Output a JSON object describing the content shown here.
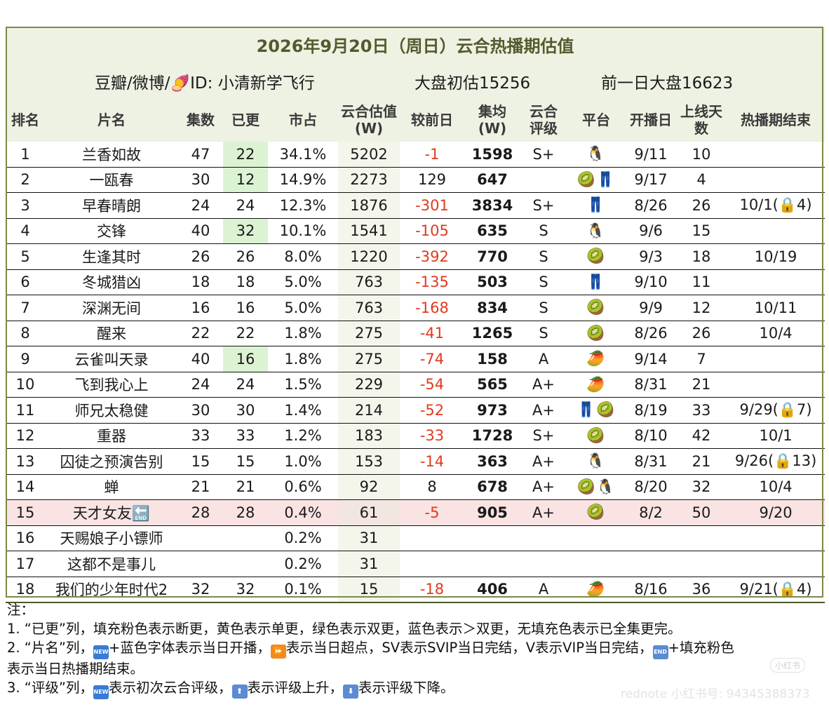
{
  "header": {
    "title": "2026年9月20日（周日）云合热播期估值",
    "author": "豆瓣/微博/🍠ID: 小清新学飞行",
    "initial_estimate": "大盘初估15256",
    "prev_day": "前一日大盘16623"
  },
  "columns": [
    "排名",
    "片名",
    "集数",
    "已更",
    "市占",
    "云合估值\n(W)",
    "较前日",
    "集均\n(W)",
    "云合\n评级",
    "平台",
    "开播日",
    "上线天\n数",
    "热播期结束"
  ],
  "rows": [
    {
      "rank": "1",
      "name": "兰香如故",
      "eps": "47",
      "updated": "22",
      "share": "34.1%",
      "est": "5202",
      "diff": "-1",
      "avg": "1598",
      "grade": "S+",
      "platform": "🐧",
      "start": "9/11",
      "days": "10",
      "end": ""
    },
    {
      "rank": "2",
      "name": "一瓯春",
      "eps": "30",
      "updated": "12",
      "share": "14.9%",
      "est": "2273",
      "diff": "129",
      "avg": "647",
      "grade": "",
      "platform": "🥝👖",
      "start": "9/17",
      "days": "4",
      "end": ""
    },
    {
      "rank": "3",
      "name": "早春晴朗",
      "eps": "24",
      "updated": "24",
      "share": "12.3%",
      "est": "1876",
      "diff": "-301",
      "avg": "3834",
      "grade": "S+",
      "platform": "👖",
      "start": "8/26",
      "days": "26",
      "end": "10/1(🔒4)"
    },
    {
      "rank": "4",
      "name": "交锋",
      "eps": "40",
      "updated": "32",
      "share": "10.1%",
      "est": "1541",
      "diff": "-105",
      "avg": "635",
      "grade": "S",
      "platform": "🐧",
      "start": "9/6",
      "days": "15",
      "end": ""
    },
    {
      "rank": "5",
      "name": "生逢其时",
      "eps": "26",
      "updated": "26",
      "share": "8.0%",
      "est": "1220",
      "diff": "-392",
      "avg": "770",
      "grade": "S",
      "platform": "🥝",
      "start": "9/3",
      "days": "18",
      "end": "10/19"
    },
    {
      "rank": "6",
      "name": "冬城猎凶",
      "eps": "18",
      "updated": "18",
      "share": "5.0%",
      "est": "763",
      "diff": "-135",
      "avg": "503",
      "grade": "S",
      "platform": "👖",
      "start": "9/10",
      "days": "11",
      "end": ""
    },
    {
      "rank": "7",
      "name": "深渊无间",
      "eps": "16",
      "updated": "16",
      "share": "5.0%",
      "est": "763",
      "diff": "-168",
      "avg": "834",
      "grade": "S",
      "platform": "🥝",
      "start": "9/9",
      "days": "12",
      "end": "10/11"
    },
    {
      "rank": "8",
      "name": "醒来",
      "eps": "22",
      "updated": "22",
      "share": "1.8%",
      "est": "275",
      "diff": "-41",
      "avg": "1265",
      "grade": "S",
      "platform": "🥝",
      "start": "8/26",
      "days": "26",
      "end": "10/4"
    },
    {
      "rank": "9",
      "name": "云雀叫天录",
      "eps": "40",
      "updated": "16",
      "share": "1.8%",
      "est": "275",
      "diff": "-74",
      "avg": "158",
      "grade": "A",
      "platform": "🥭",
      "start": "9/14",
      "days": "7",
      "end": ""
    },
    {
      "rank": "10",
      "name": "飞到我心上",
      "eps": "24",
      "updated": "24",
      "share": "1.5%",
      "est": "229",
      "diff": "-54",
      "avg": "565",
      "grade": "A+",
      "platform": "🥭",
      "start": "8/31",
      "days": "21",
      "end": ""
    },
    {
      "rank": "11",
      "name": "师兄太稳健",
      "eps": "30",
      "updated": "30",
      "share": "1.4%",
      "est": "214",
      "diff": "-52",
      "avg": "973",
      "grade": "A+",
      "platform": "👖🥝",
      "start": "8/19",
      "days": "33",
      "end": "9/29(🔒7)"
    },
    {
      "rank": "12",
      "name": "重器",
      "eps": "33",
      "updated": "33",
      "share": "1.2%",
      "est": "183",
      "diff": "-33",
      "avg": "1728",
      "grade": "S+",
      "platform": "🥝",
      "start": "8/10",
      "days": "42",
      "end": "10/1"
    },
    {
      "rank": "13",
      "name": "囚徒之预演告别",
      "eps": "15",
      "updated": "15",
      "share": "1.0%",
      "est": "153",
      "diff": "-14",
      "avg": "363",
      "grade": "A+",
      "platform": "🐧",
      "start": "8/31",
      "days": "21",
      "end": "9/26(🔒13)"
    },
    {
      "rank": "14",
      "name": "蝉",
      "eps": "21",
      "updated": "21",
      "share": "0.6%",
      "est": "92",
      "diff": "8",
      "avg": "678",
      "grade": "A+",
      "platform": "🥝🐧",
      "start": "8/20",
      "days": "32",
      "end": "10/4"
    },
    {
      "rank": "15",
      "name": "天才女友🔚",
      "eps": "28",
      "updated": "28",
      "share": "0.4%",
      "est": "61",
      "diff": "-5",
      "avg": "905",
      "grade": "A+",
      "platform": "🥝",
      "start": "8/2",
      "days": "50",
      "end": "9/20"
    },
    {
      "rank": "16",
      "name": "天赐娘子小镖师",
      "eps": "",
      "updated": "",
      "share": "0.2%",
      "est": "31",
      "diff": "",
      "avg": "",
      "grade": "",
      "platform": "",
      "start": "",
      "days": "",
      "end": ""
    },
    {
      "rank": "17",
      "name": "这都不是事儿",
      "eps": "",
      "updated": "",
      "share": "0.2%",
      "est": "31",
      "diff": "",
      "avg": "",
      "grade": "",
      "platform": "",
      "start": "",
      "days": "",
      "end": ""
    },
    {
      "rank": "18",
      "name": "我们的少年时代2",
      "eps": "32",
      "updated": "32",
      "share": "0.1%",
      "est": "15",
      "diff": "-18",
      "avg": "406",
      "grade": "A",
      "platform": "🥭",
      "start": "8/16",
      "days": "36",
      "end": "9/21(🔒4)"
    }
  ],
  "notes": {
    "head": "注：",
    "n1": "1. “已更”列，填充粉色表示断更，黄色表示单更，绿色表示双更，蓝色表示＞双更，无填充色表示已全集更完。",
    "n2a": "2. “片名”列，",
    "n2b": "+蓝色字体表示当日开播，",
    "n2c": "表示当日超点，SV表示SVIP当日完结，V表示VIP当日完结，",
    "n2d": "+填充粉色",
    "n2e": "表示当日热播期结束。",
    "n3a": "3. “评级”列，",
    "n3b": "表示初次云合评级，",
    "n3c": "表示评级上升，",
    "n3d": "表示评级下降。",
    "icon_new": "NEW",
    "icon_ff": "⏩",
    "icon_end": "END",
    "icon_up": "⬆",
    "icon_down": "⬇"
  },
  "watermark": {
    "badge": "小红书",
    "id_text": "rednote 小红书号: 94345388373"
  }
}
